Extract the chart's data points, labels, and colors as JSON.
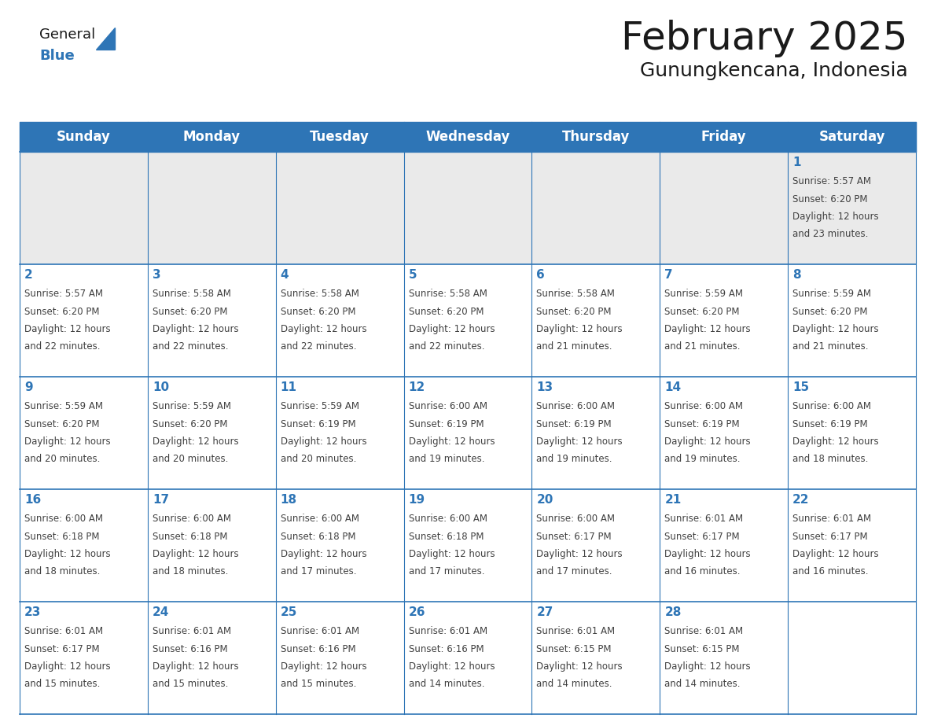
{
  "title": "February 2025",
  "subtitle": "Gunungkencana, Indonesia",
  "header_bg": "#2e75b6",
  "header_text_color": "#ffffff",
  "row0_bg": "#eaeaea",
  "row_bg": "#ffffff",
  "border_color": "#2e75b6",
  "text_color": "#404040",
  "day_num_color": "#2e75b6",
  "day_headers": [
    "Sunday",
    "Monday",
    "Tuesday",
    "Wednesday",
    "Thursday",
    "Friday",
    "Saturday"
  ],
  "calendar": [
    [
      null,
      null,
      null,
      null,
      null,
      null,
      {
        "day": "1",
        "sunrise": "5:57 AM",
        "sunset": "6:20 PM",
        "daylight1": "12 hours",
        "daylight2": "and 23 minutes."
      }
    ],
    [
      {
        "day": "2",
        "sunrise": "5:57 AM",
        "sunset": "6:20 PM",
        "daylight1": "12 hours",
        "daylight2": "and 22 minutes."
      },
      {
        "day": "3",
        "sunrise": "5:58 AM",
        "sunset": "6:20 PM",
        "daylight1": "12 hours",
        "daylight2": "and 22 minutes."
      },
      {
        "day": "4",
        "sunrise": "5:58 AM",
        "sunset": "6:20 PM",
        "daylight1": "12 hours",
        "daylight2": "and 22 minutes."
      },
      {
        "day": "5",
        "sunrise": "5:58 AM",
        "sunset": "6:20 PM",
        "daylight1": "12 hours",
        "daylight2": "and 22 minutes."
      },
      {
        "day": "6",
        "sunrise": "5:58 AM",
        "sunset": "6:20 PM",
        "daylight1": "12 hours",
        "daylight2": "and 21 minutes."
      },
      {
        "day": "7",
        "sunrise": "5:59 AM",
        "sunset": "6:20 PM",
        "daylight1": "12 hours",
        "daylight2": "and 21 minutes."
      },
      {
        "day": "8",
        "sunrise": "5:59 AM",
        "sunset": "6:20 PM",
        "daylight1": "12 hours",
        "daylight2": "and 21 minutes."
      }
    ],
    [
      {
        "day": "9",
        "sunrise": "5:59 AM",
        "sunset": "6:20 PM",
        "daylight1": "12 hours",
        "daylight2": "and 20 minutes."
      },
      {
        "day": "10",
        "sunrise": "5:59 AM",
        "sunset": "6:20 PM",
        "daylight1": "12 hours",
        "daylight2": "and 20 minutes."
      },
      {
        "day": "11",
        "sunrise": "5:59 AM",
        "sunset": "6:19 PM",
        "daylight1": "12 hours",
        "daylight2": "and 20 minutes."
      },
      {
        "day": "12",
        "sunrise": "6:00 AM",
        "sunset": "6:19 PM",
        "daylight1": "12 hours",
        "daylight2": "and 19 minutes."
      },
      {
        "day": "13",
        "sunrise": "6:00 AM",
        "sunset": "6:19 PM",
        "daylight1": "12 hours",
        "daylight2": "and 19 minutes."
      },
      {
        "day": "14",
        "sunrise": "6:00 AM",
        "sunset": "6:19 PM",
        "daylight1": "12 hours",
        "daylight2": "and 19 minutes."
      },
      {
        "day": "15",
        "sunrise": "6:00 AM",
        "sunset": "6:19 PM",
        "daylight1": "12 hours",
        "daylight2": "and 18 minutes."
      }
    ],
    [
      {
        "day": "16",
        "sunrise": "6:00 AM",
        "sunset": "6:18 PM",
        "daylight1": "12 hours",
        "daylight2": "and 18 minutes."
      },
      {
        "day": "17",
        "sunrise": "6:00 AM",
        "sunset": "6:18 PM",
        "daylight1": "12 hours",
        "daylight2": "and 18 minutes."
      },
      {
        "day": "18",
        "sunrise": "6:00 AM",
        "sunset": "6:18 PM",
        "daylight1": "12 hours",
        "daylight2": "and 17 minutes."
      },
      {
        "day": "19",
        "sunrise": "6:00 AM",
        "sunset": "6:18 PM",
        "daylight1": "12 hours",
        "daylight2": "and 17 minutes."
      },
      {
        "day": "20",
        "sunrise": "6:00 AM",
        "sunset": "6:17 PM",
        "daylight1": "12 hours",
        "daylight2": "and 17 minutes."
      },
      {
        "day": "21",
        "sunrise": "6:01 AM",
        "sunset": "6:17 PM",
        "daylight1": "12 hours",
        "daylight2": "and 16 minutes."
      },
      {
        "day": "22",
        "sunrise": "6:01 AM",
        "sunset": "6:17 PM",
        "daylight1": "12 hours",
        "daylight2": "and 16 minutes."
      }
    ],
    [
      {
        "day": "23",
        "sunrise": "6:01 AM",
        "sunset": "6:17 PM",
        "daylight1": "12 hours",
        "daylight2": "and 15 minutes."
      },
      {
        "day": "24",
        "sunrise": "6:01 AM",
        "sunset": "6:16 PM",
        "daylight1": "12 hours",
        "daylight2": "and 15 minutes."
      },
      {
        "day": "25",
        "sunrise": "6:01 AM",
        "sunset": "6:16 PM",
        "daylight1": "12 hours",
        "daylight2": "and 15 minutes."
      },
      {
        "day": "26",
        "sunrise": "6:01 AM",
        "sunset": "6:16 PM",
        "daylight1": "12 hours",
        "daylight2": "and 14 minutes."
      },
      {
        "day": "27",
        "sunrise": "6:01 AM",
        "sunset": "6:15 PM",
        "daylight1": "12 hours",
        "daylight2": "and 14 minutes."
      },
      {
        "day": "28",
        "sunrise": "6:01 AM",
        "sunset": "6:15 PM",
        "daylight1": "12 hours",
        "daylight2": "and 14 minutes."
      },
      null
    ]
  ],
  "logo_general_color": "#1a1a1a",
  "logo_blue_color": "#2e75b6",
  "logo_triangle_color": "#2e75b6",
  "title_fontsize": 36,
  "subtitle_fontsize": 18,
  "header_fontsize": 12,
  "day_num_fontsize": 11,
  "cell_text_fontsize": 8.5
}
